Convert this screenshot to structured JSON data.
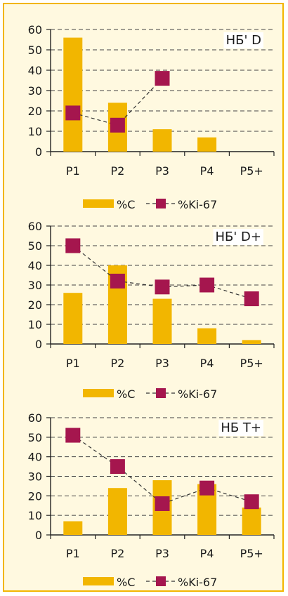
{
  "colors": {
    "bar": "#f2b600",
    "marker": "#a5164e",
    "line": "#333333",
    "frame": "#f2b600",
    "background": "#fff9e0"
  },
  "chart_data": [
    {
      "type": "bar",
      "title": "НБ' D",
      "categories": [
        "P1",
        "P2",
        "P3",
        "P4",
        "P5+"
      ],
      "ylim": [
        0,
        60
      ],
      "yticks": [
        "0",
        "10",
        "20",
        "30",
        "40",
        "50",
        "60"
      ],
      "grid": true,
      "legend": [
        "%C",
        "%Ki-67"
      ],
      "legend_position": "bottom",
      "series": [
        {
          "name": "%C",
          "kind": "bar",
          "values": [
            56,
            24,
            11,
            7,
            0
          ]
        },
        {
          "name": "%Ki-67",
          "kind": "line-marker",
          "values": [
            19,
            13,
            36,
            null,
            null
          ]
        }
      ]
    },
    {
      "type": "bar",
      "title": "НБ' D+",
      "categories": [
        "P1",
        "P2",
        "P3",
        "P4",
        "P5+"
      ],
      "ylim": [
        0,
        60
      ],
      "yticks": [
        "0",
        "10",
        "20",
        "30",
        "40",
        "50",
        "60"
      ],
      "grid": true,
      "legend": [
        "%C",
        "%Ki-67"
      ],
      "legend_position": "bottom",
      "series": [
        {
          "name": "%C",
          "kind": "bar",
          "values": [
            26,
            40,
            23,
            8,
            2
          ]
        },
        {
          "name": "%Ki-67",
          "kind": "line-marker",
          "values": [
            50,
            32,
            29,
            30,
            23
          ]
        }
      ]
    },
    {
      "type": "bar",
      "title": "НБ T+",
      "categories": [
        "P1",
        "P2",
        "P3",
        "P4",
        "P5+"
      ],
      "ylim": [
        0,
        60
      ],
      "yticks": [
        "0",
        "10",
        "20",
        "30",
        "40",
        "50",
        "60"
      ],
      "grid": true,
      "legend": [
        "%C",
        "%Ki-67"
      ],
      "legend_position": "bottom",
      "series": [
        {
          "name": "%C",
          "kind": "bar",
          "values": [
            7,
            24,
            28,
            26,
            14
          ]
        },
        {
          "name": "%Ki-67",
          "kind": "line-marker",
          "values": [
            51,
            35,
            16,
            24,
            17
          ]
        }
      ]
    }
  ]
}
